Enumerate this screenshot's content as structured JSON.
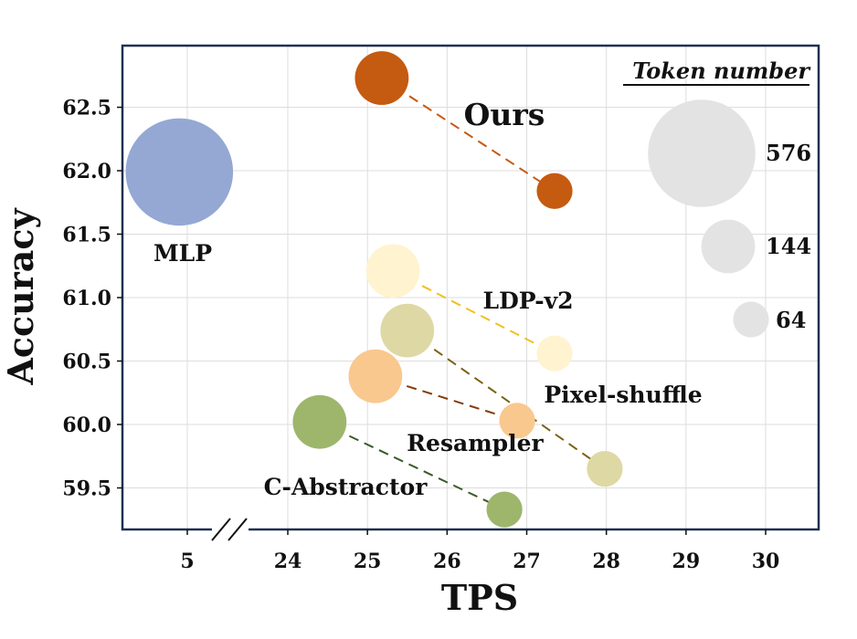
{
  "chart_data": {
    "type": "scatter",
    "xlabel": "TPS",
    "ylabel": "Accuracy",
    "x_tick_labels": [
      "5",
      "24",
      "25",
      "26",
      "27",
      "28",
      "29",
      "30"
    ],
    "y_tick_labels": [
      "59.5",
      "60.0",
      "60.5",
      "61.0",
      "61.5",
      "62.0",
      "62.5"
    ],
    "ylim": [
      59.25,
      62.95
    ],
    "xlim_left_segment": [
      4.2,
      5.6
    ],
    "xlim_right_segment": [
      23.7,
      30.7
    ],
    "grid": true,
    "axis_break": "x",
    "legend": {
      "title": "Token number",
      "position": "top-right",
      "entries": [
        {
          "label": "576",
          "tokens": 576
        },
        {
          "label": "144",
          "tokens": 144
        },
        {
          "label": "64",
          "tokens": 64
        }
      ],
      "color": "#e3e3e3"
    },
    "series": [
      {
        "name": "MLP",
        "color": "#94a8d3",
        "line_color": null,
        "points": [
          {
            "x": 4.9,
            "y": 61.99,
            "tokens": 576
          }
        ]
      },
      {
        "name": "Ours",
        "color": "#c55a11",
        "line_color": "#c55a11",
        "points": [
          {
            "x": 25.18,
            "y": 62.73,
            "tokens": 144
          },
          {
            "x": 27.35,
            "y": 61.84,
            "tokens": 64
          }
        ]
      },
      {
        "name": "LDP-v2",
        "color": "#fff3d0",
        "line_color": "#f0c020",
        "points": [
          {
            "x": 25.32,
            "y": 61.21,
            "tokens": 144
          },
          {
            "x": 27.35,
            "y": 60.56,
            "tokens": 64
          }
        ]
      },
      {
        "name": "Pixel-shuffle",
        "color": "#ded8a4",
        "line_color": "#7a6214",
        "points": [
          {
            "x": 25.5,
            "y": 60.74,
            "tokens": 144
          },
          {
            "x": 27.98,
            "y": 59.65,
            "tokens": 64
          }
        ]
      },
      {
        "name": "Resampler",
        "color": "#f9c88e",
        "line_color": "#843c0c",
        "points": [
          {
            "x": 25.1,
            "y": 60.38,
            "tokens": 144
          },
          {
            "x": 26.88,
            "y": 60.03,
            "tokens": 64
          }
        ]
      },
      {
        "name": "C-Abstractor",
        "color": "#9db66c",
        "line_color": "#3b5a26",
        "points": [
          {
            "x": 24.4,
            "y": 60.02,
            "tokens": 144
          },
          {
            "x": 26.72,
            "y": 59.33,
            "tokens": 64
          }
        ]
      }
    ]
  }
}
